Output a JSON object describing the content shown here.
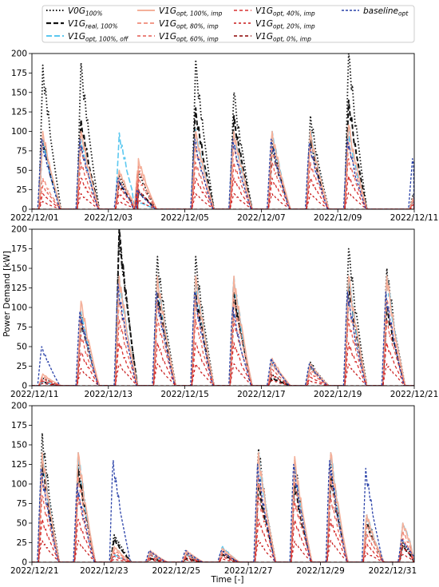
{
  "chart_data": {
    "type": "line",
    "xlabel": "Time [-]",
    "ylabel": "Power Demand [kW]",
    "ylim": [
      0,
      200
    ],
    "yticks": [
      0,
      25,
      50,
      75,
      100,
      125,
      150,
      175,
      200
    ],
    "legend_placement": "top",
    "series": [
      {
        "main": "V0G",
        "sub": "100%",
        "color": "#111111",
        "dash": "1.5,2.5",
        "width": 1.8
      },
      {
        "main": "V1G",
        "sub": "real, 100%",
        "color": "#111111",
        "dash": "6,3",
        "width": 2.0
      },
      {
        "main": "V1G",
        "sub": "opt, 100%, off",
        "color": "#5bc8f0",
        "dash": "7,3",
        "width": 1.6
      },
      {
        "main": "V1G",
        "sub": "opt, 100%, imp",
        "color": "#f4b09a",
        "dash": "",
        "width": 1.6
      },
      {
        "main": "V1G",
        "sub": "opt, 80%, imp",
        "color": "#f08c7a",
        "dash": "5,3",
        "width": 1.4
      },
      {
        "main": "V1G",
        "sub": "opt, 60%, imp",
        "color": "#e45a50",
        "dash": "4,3",
        "width": 1.3
      },
      {
        "main": "V1G",
        "sub": "opt, 40%, imp",
        "color": "#d83030",
        "dash": "4,3",
        "width": 1.3
      },
      {
        "main": "V1G",
        "sub": "opt, 20%, imp",
        "color": "#c81818",
        "dash": "3,3",
        "width": 1.2
      },
      {
        "main": "V1G",
        "sub": "opt, 0%, imp",
        "color": "#8b0000",
        "dash": "4,3",
        "width": 1.2
      },
      {
        "main": "baseline",
        "sub": "opt",
        "color": "#2840a8",
        "dash": "3,2",
        "width": 1.3
      }
    ],
    "panels": [
      {
        "xlim_days": [
          0,
          10
        ],
        "xticks": [
          {
            "d": 0,
            "label": "2022/12/01"
          },
          {
            "d": 2,
            "label": "2022/12/03"
          },
          {
            "d": 4,
            "label": "2022/12/05"
          },
          {
            "d": 6,
            "label": "2022/12/07"
          },
          {
            "d": 8,
            "label": "2022/12/09"
          },
          {
            "d": 10,
            "label": "2022/12/11"
          }
        ],
        "days": [
          {
            "d": 0,
            "p": [
              185,
              90,
              90,
              100,
              40,
              30,
              20,
              10,
              0,
              90
            ]
          },
          {
            "d": 1,
            "p": [
              188,
              115,
              90,
              100,
              80,
              60,
              40,
              20,
              0,
              90
            ]
          },
          {
            "d": 2,
            "p": [
              45,
              35,
              98,
              50,
              40,
              30,
              20,
              10,
              0,
              40
            ]
          },
          {
            "d": 2.5,
            "p": [
              50,
              25,
              10,
              65,
              55,
              40,
              25,
              12,
              0,
              25
            ]
          },
          {
            "d": 4,
            "p": [
              192,
              130,
              102,
              100,
              80,
              60,
              40,
              20,
              0,
              90
            ]
          },
          {
            "d": 5,
            "p": [
              150,
              120,
              100,
              100,
              80,
              60,
              40,
              20,
              0,
              90
            ]
          },
          {
            "d": 6,
            "p": [
              90,
              80,
              100,
              100,
              80,
              60,
              40,
              20,
              0,
              90
            ]
          },
          {
            "d": 7,
            "p": [
              120,
              90,
              100,
              100,
              80,
              60,
              40,
              20,
              0,
              85
            ]
          },
          {
            "d": 8,
            "p": [
              200,
              140,
              100,
              108,
              86,
              65,
              43,
              22,
              0,
              90
            ]
          },
          {
            "d": 9.7,
            "p": [
              20,
              15,
              15,
              15,
              12,
              9,
              6,
              3,
              0,
              65
            ]
          }
        ]
      },
      {
        "xlim_days": [
          0,
          10
        ],
        "xticks": [
          {
            "d": 0,
            "label": "2022/12/11"
          },
          {
            "d": 2,
            "label": "2022/12/13"
          },
          {
            "d": 4,
            "label": "2022/12/15"
          },
          {
            "d": 6,
            "label": "2022/12/17"
          },
          {
            "d": 8,
            "label": "2022/12/19"
          },
          {
            "d": 10,
            "label": "2022/12/21"
          }
        ],
        "days": [
          {
            "d": 0,
            "p": [
              10,
              5,
              5,
              15,
              12,
              9,
              6,
              3,
              0,
              50
            ]
          },
          {
            "d": 1,
            "p": [
              92,
              85,
              95,
              108,
              86,
              65,
              43,
              22,
              0,
              95
            ]
          },
          {
            "d": 2,
            "p": [
              200,
              200,
              140,
              140,
              110,
              85,
              55,
              28,
              0,
              130
            ]
          },
          {
            "d": 3,
            "p": [
              165,
              120,
              140,
              140,
              110,
              85,
              55,
              28,
              0,
              120
            ]
          },
          {
            "d": 4,
            "p": [
              165,
              120,
              140,
              140,
              110,
              85,
              55,
              28,
              0,
              120
            ]
          },
          {
            "d": 5,
            "p": [
              120,
              120,
              140,
              140,
              110,
              85,
              55,
              28,
              0,
              100
            ]
          },
          {
            "d": 6,
            "p": [
              15,
              10,
              30,
              35,
              28,
              21,
              14,
              7,
              0,
              35
            ]
          },
          {
            "d": 7,
            "p": [
              30,
              25,
              25,
              28,
              22,
              17,
              11,
              6,
              0,
              28
            ]
          },
          {
            "d": 8,
            "p": [
              175,
              130,
              140,
              140,
              110,
              85,
              55,
              28,
              0,
              120
            ]
          },
          {
            "d": 9,
            "p": [
              150,
              100,
              140,
              140,
              110,
              85,
              55,
              28,
              0,
              120
            ]
          }
        ]
      },
      {
        "xlim_days": [
          0,
          10.6
        ],
        "xticks": [
          {
            "d": 0,
            "label": "2022/12/21"
          },
          {
            "d": 2,
            "label": "2022/12/23"
          },
          {
            "d": 4,
            "label": "2022/12/25"
          },
          {
            "d": 6,
            "label": "2022/12/27"
          },
          {
            "d": 8,
            "label": "2022/12/29"
          },
          {
            "d": 10,
            "label": "2022/12/31"
          }
        ],
        "days": [
          {
            "d": 0,
            "p": [
              165,
              130,
              140,
              140,
              110,
              85,
              55,
              28,
              0,
              120
            ]
          },
          {
            "d": 1,
            "p": [
              130,
              120,
              140,
              140,
              110,
              85,
              55,
              28,
              0,
              100
            ]
          },
          {
            "d": 2,
            "p": [
              35,
              30,
              10,
              20,
              16,
              12,
              8,
              4,
              0,
              130
            ]
          },
          {
            "d": 3,
            "p": [
              10,
              5,
              10,
              15,
              12,
              9,
              6,
              3,
              0,
              15
            ]
          },
          {
            "d": 4,
            "p": [
              10,
              5,
              10,
              15,
              12,
              9,
              6,
              3,
              0,
              15
            ]
          },
          {
            "d": 5,
            "p": [
              15,
              10,
              20,
              18,
              14,
              11,
              7,
              4,
              0,
              15
            ]
          },
          {
            "d": 6,
            "p": [
              145,
              100,
              140,
              140,
              110,
              85,
              55,
              28,
              0,
              125
            ]
          },
          {
            "d": 7,
            "p": [
              130,
              100,
              125,
              135,
              108,
              81,
              54,
              27,
              0,
              125
            ]
          },
          {
            "d": 8,
            "p": [
              125,
              110,
              140,
              140,
              110,
              85,
              55,
              28,
              0,
              130
            ]
          },
          {
            "d": 9,
            "p": [
              60,
              50,
              60,
              60,
              48,
              36,
              24,
              12,
              0,
              120
            ]
          },
          {
            "d": 10,
            "p": [
              25,
              20,
              50,
              50,
              40,
              30,
              20,
              10,
              0,
              30
            ]
          }
        ]
      }
    ]
  }
}
